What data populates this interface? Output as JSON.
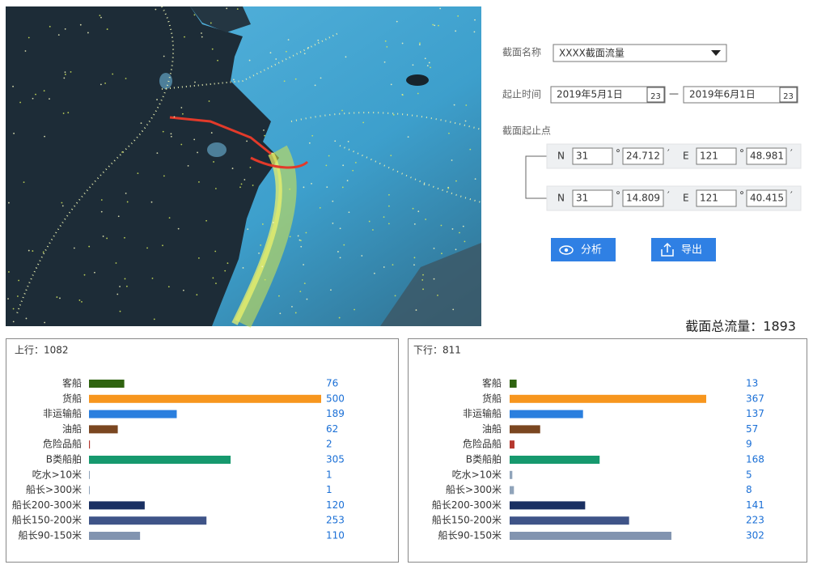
{
  "form": {
    "name_label": "截面名称",
    "name_value": "XXXX截面流量",
    "time_label": "起止时间",
    "start_date": "2019年5月1日",
    "end_date": "2019年6月1日",
    "date_icon": "23",
    "dash": "—",
    "points_label": "截面起止点",
    "deg": "°",
    "min": "′",
    "points": [
      {
        "n": "N",
        "n_deg": "31",
        "n_min": "24.712",
        "e": "E",
        "e_deg": "121",
        "e_min": "48.981"
      },
      {
        "n": "N",
        "n_deg": "31",
        "n_min": "14.809",
        "e": "E",
        "e_deg": "121",
        "e_min": "40.415"
      }
    ],
    "analyze": "分析",
    "export": "导出"
  },
  "total": "截面总流量：1893",
  "chart_data": [
    {
      "type": "bar",
      "title": "上行：1082",
      "categories": [
        "客船",
        "货船",
        "非运输船",
        "油船",
        "危险品船",
        "B类船舶",
        "吃水>10米",
        "船长>300米",
        "船长200-300米",
        "船长150-200米",
        "船长90-150米"
      ],
      "values": [
        76,
        500,
        189,
        62,
        2,
        305,
        1,
        1,
        120,
        253,
        110
      ],
      "colors": [
        "#2f6310",
        "#f7961e",
        "#2b7fde",
        "#7a4620",
        "#b5372e",
        "#16996e",
        "#90a4ba",
        "#90a4ba",
        "#1a3062",
        "#3f5488",
        "#8294b0"
      ]
    },
    {
      "type": "bar",
      "title": "下行：811",
      "categories": [
        "客船",
        "货船",
        "非运输船",
        "油船",
        "危险品船",
        "B类船舶",
        "吃水>10米",
        "船长>300米",
        "船长200-300米",
        "船长150-200米",
        "船长90-150米"
      ],
      "values": [
        13,
        367,
        137,
        57,
        9,
        168,
        5,
        8,
        141,
        223,
        302
      ],
      "colors": [
        "#2f6310",
        "#f7961e",
        "#2b7fde",
        "#7a4620",
        "#b5372e",
        "#16996e",
        "#90a4ba",
        "#90a4ba",
        "#1a3062",
        "#3f5488",
        "#8294b0"
      ]
    }
  ]
}
